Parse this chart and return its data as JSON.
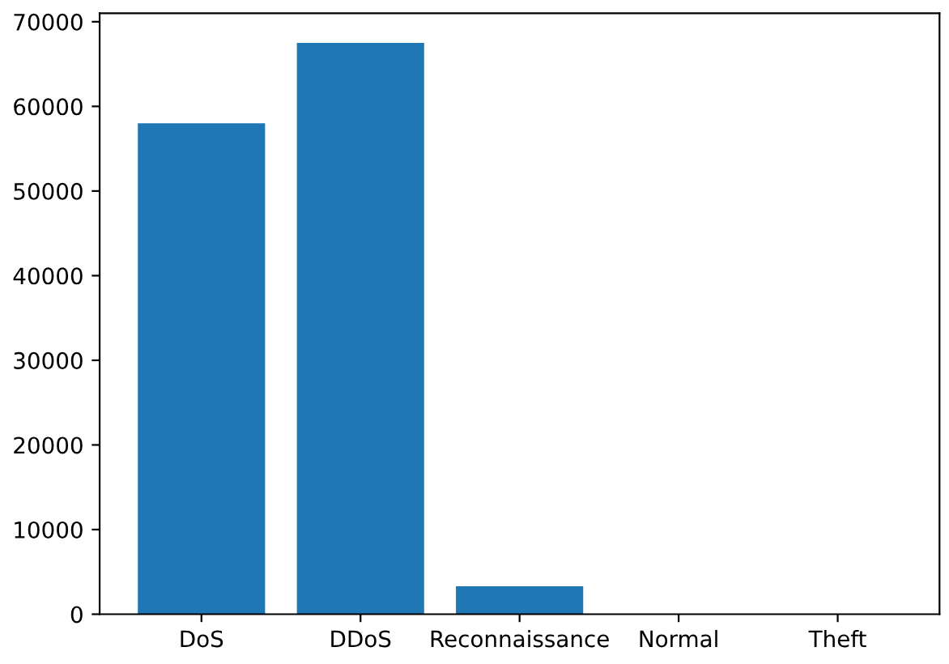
{
  "chart_data": {
    "type": "bar",
    "categories": [
      "DoS",
      "DDoS",
      "Reconnaissance",
      "Normal",
      "Theft"
    ],
    "values": [
      58000,
      67500,
      3300,
      0,
      0
    ],
    "color": "#1f77b4",
    "ylim": [
      0,
      71000
    ],
    "yticks": [
      0,
      10000,
      20000,
      30000,
      40000,
      50000,
      60000,
      70000
    ],
    "grid": false
  }
}
